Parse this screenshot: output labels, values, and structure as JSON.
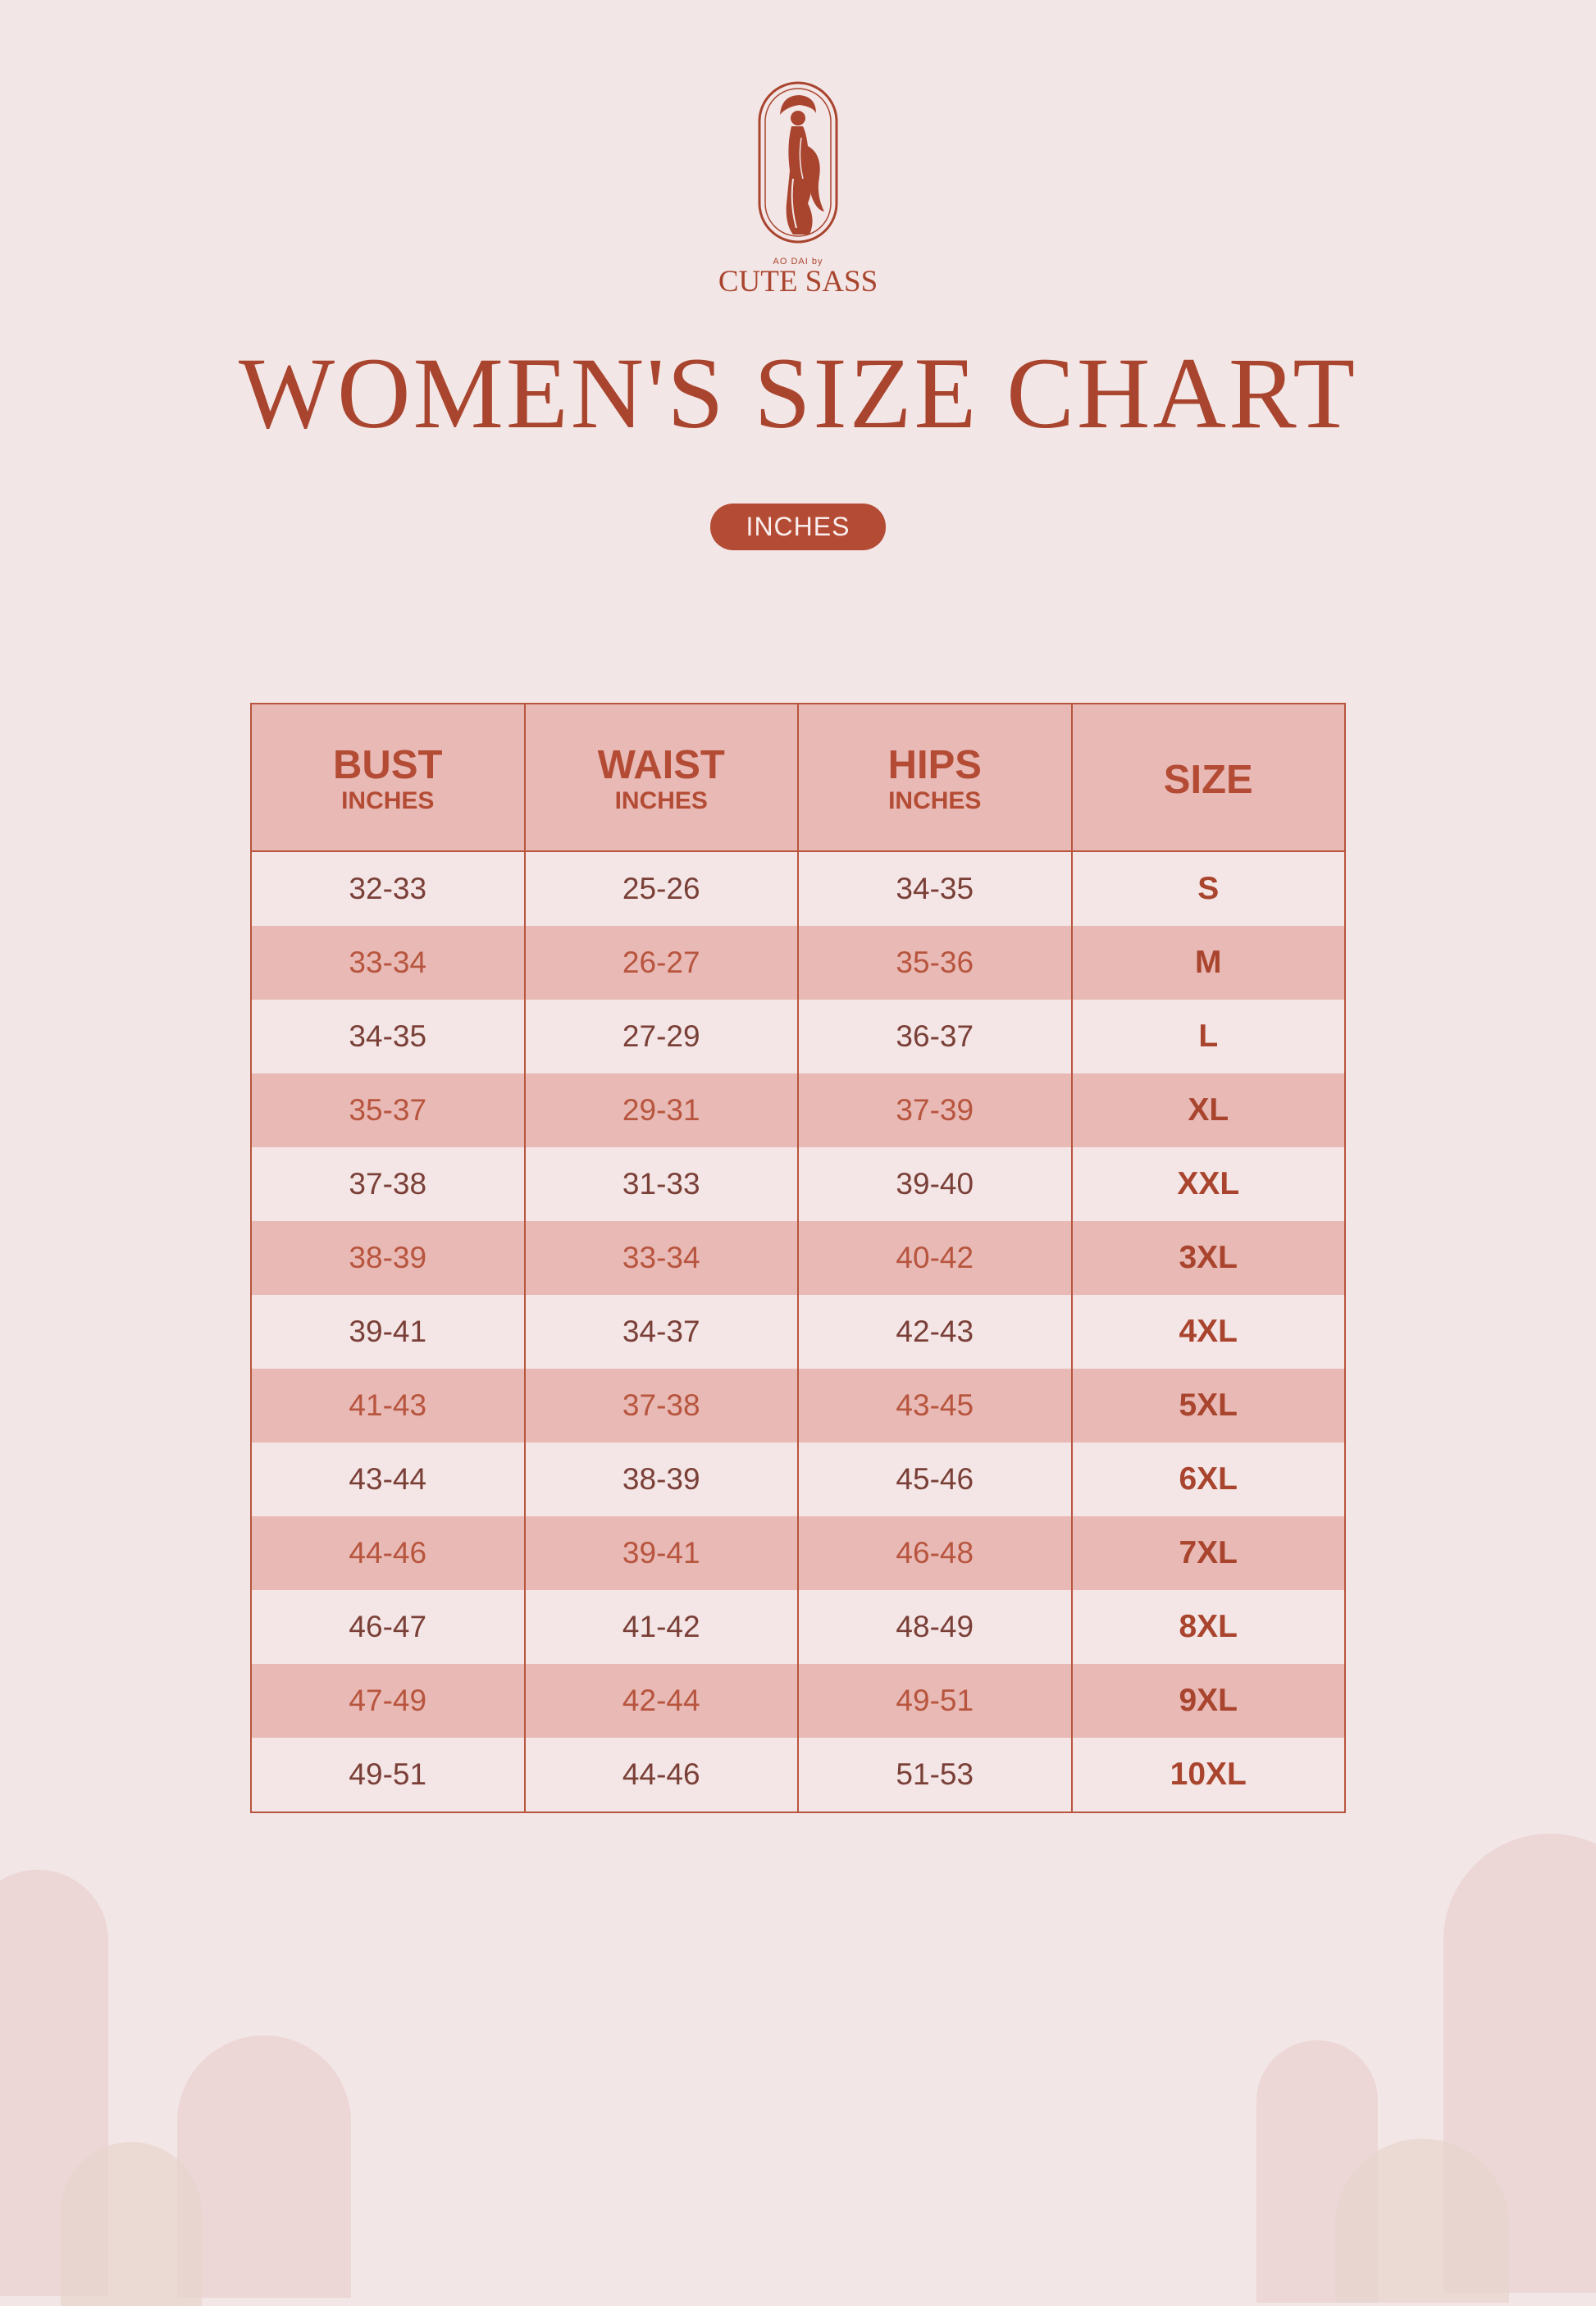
{
  "brand": {
    "small_text": "AO DAI by",
    "name": "CUTE SASS"
  },
  "title": "WOMEN'S SIZE CHART",
  "unit_badge": "INCHES",
  "table": {
    "headers": [
      {
        "label": "BUST",
        "sub": "INCHES"
      },
      {
        "label": "WAIST",
        "sub": "INCHES"
      },
      {
        "label": "HIPS",
        "sub": "INCHES"
      },
      {
        "label": "SIZE",
        "sub": ""
      }
    ],
    "rows": [
      {
        "bust": "32-33",
        "waist": "25-26",
        "hips": "34-35",
        "size": "S"
      },
      {
        "bust": "33-34",
        "waist": "26-27",
        "hips": "35-36",
        "size": "M"
      },
      {
        "bust": "34-35",
        "waist": "27-29",
        "hips": "36-37",
        "size": "L"
      },
      {
        "bust": "35-37",
        "waist": "29-31",
        "hips": "37-39",
        "size": "XL"
      },
      {
        "bust": "37-38",
        "waist": "31-33",
        "hips": "39-40",
        "size": "XXL"
      },
      {
        "bust": "38-39",
        "waist": "33-34",
        "hips": "40-42",
        "size": "3XL"
      },
      {
        "bust": "39-41",
        "waist": "34-37",
        "hips": "42-43",
        "size": "4XL"
      },
      {
        "bust": "41-43",
        "waist": "37-38",
        "hips": "43-45",
        "size": "5XL"
      },
      {
        "bust": "43-44",
        "waist": "38-39",
        "hips": "45-46",
        "size": "6XL"
      },
      {
        "bust": "44-46",
        "waist": "39-41",
        "hips": "46-48",
        "size": "7XL"
      },
      {
        "bust": "46-47",
        "waist": "41-42",
        "hips": "48-49",
        "size": "8XL"
      },
      {
        "bust": "47-49",
        "waist": "42-44",
        "hips": "49-51",
        "size": "9XL"
      },
      {
        "bust": "49-51",
        "waist": "44-46",
        "hips": "51-53",
        "size": "10XL"
      }
    ]
  },
  "colors": {
    "accent": "#b44c35",
    "background": "#f3e6e6",
    "stripe": "#e8b9b5"
  },
  "icons": {
    "logo": "ao-dai-woman-logo"
  }
}
